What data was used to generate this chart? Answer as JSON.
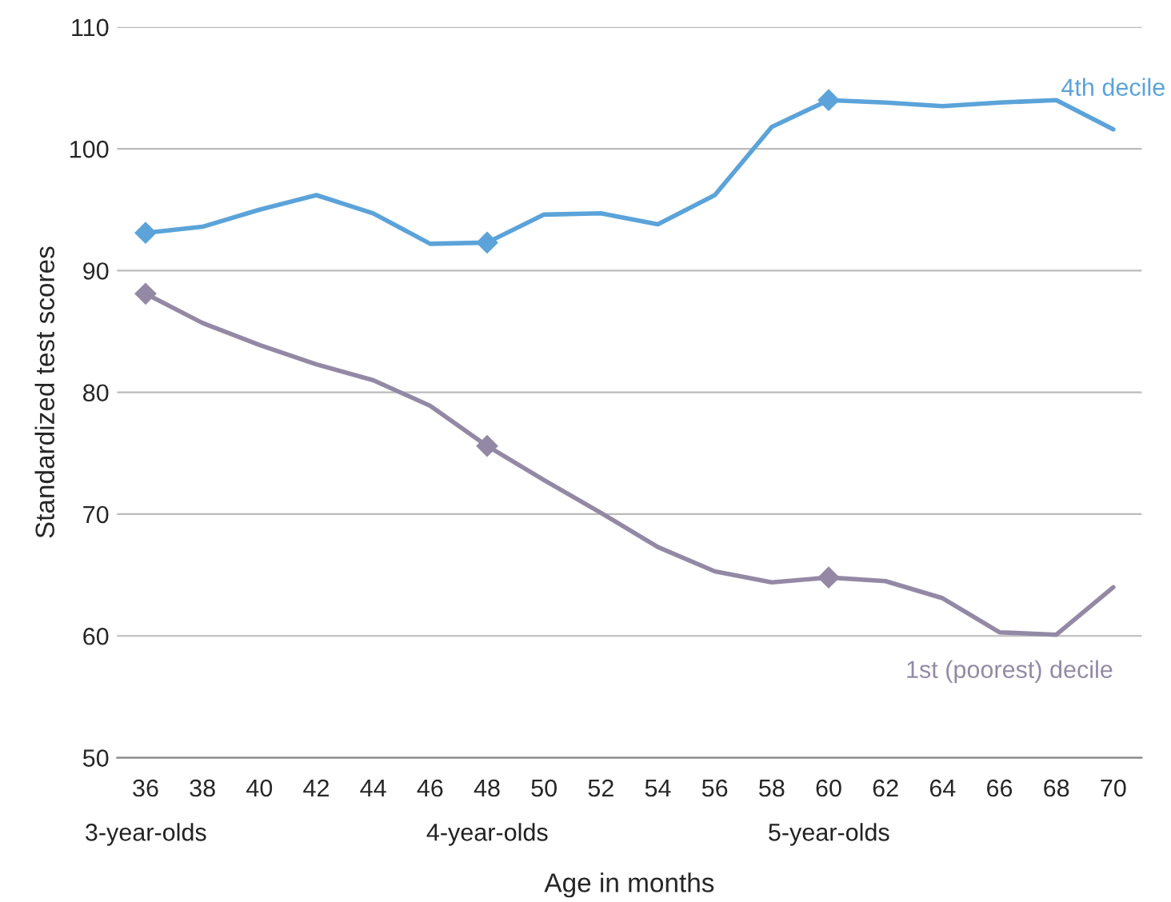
{
  "chart_data": {
    "type": "line",
    "xlabel": "Age in months",
    "ylabel": "Standardized test scores",
    "xlim": [
      35,
      71
    ],
    "ylim": [
      50,
      110
    ],
    "xticks": [
      36,
      38,
      40,
      42,
      44,
      46,
      48,
      50,
      52,
      54,
      56,
      58,
      60,
      62,
      64,
      66,
      68,
      70
    ],
    "annotations": [
      "3-year-olds",
      "4-year-olds",
      "5-year-olds"
    ],
    "yticks": [
      50,
      60,
      70,
      80,
      90,
      100,
      110
    ],
    "grid": "y",
    "legend": false,
    "line_style": "solid",
    "series": [
      {
        "name": "4th decile",
        "color": "#5ba3d9",
        "x": [
          36,
          38,
          40,
          42,
          44,
          46,
          48,
          50,
          52,
          54,
          56,
          58,
          60,
          62,
          64,
          66,
          68,
          70
        ],
        "values": [
          93.1,
          93.6,
          95.0,
          96.2,
          94.7,
          92.2,
          92.3,
          94.6,
          94.7,
          93.8,
          96.2,
          101.8,
          104.0,
          103.8,
          103.5,
          103.8,
          104.0,
          101.6
        ]
      },
      {
        "name": "1st (poorest) decile",
        "color": "#9389a5",
        "x": [
          36,
          38,
          40,
          42,
          44,
          46,
          48,
          50,
          52,
          54,
          56,
          58,
          60,
          62,
          64,
          66,
          68,
          70
        ],
        "values": [
          88.1,
          85.7,
          83.9,
          82.3,
          81.0,
          78.9,
          75.6,
          72.8,
          70.1,
          67.3,
          65.3,
          64.4,
          64.8,
          64.5,
          63.1,
          60.3,
          60.1,
          64.0
        ]
      },
      {
        "type": "scatter",
        "marker": "diamond",
        "color": "#5ba3d9",
        "x": [
          36,
          48,
          60
        ],
        "values": [
          93.1,
          92.3,
          104.0
        ]
      },
      {
        "type": "scatter",
        "marker": "diamond",
        "color": "#9389a5",
        "x": [
          36,
          48,
          60
        ],
        "values": [
          88.1,
          75.6,
          64.8
        ]
      }
    ]
  }
}
